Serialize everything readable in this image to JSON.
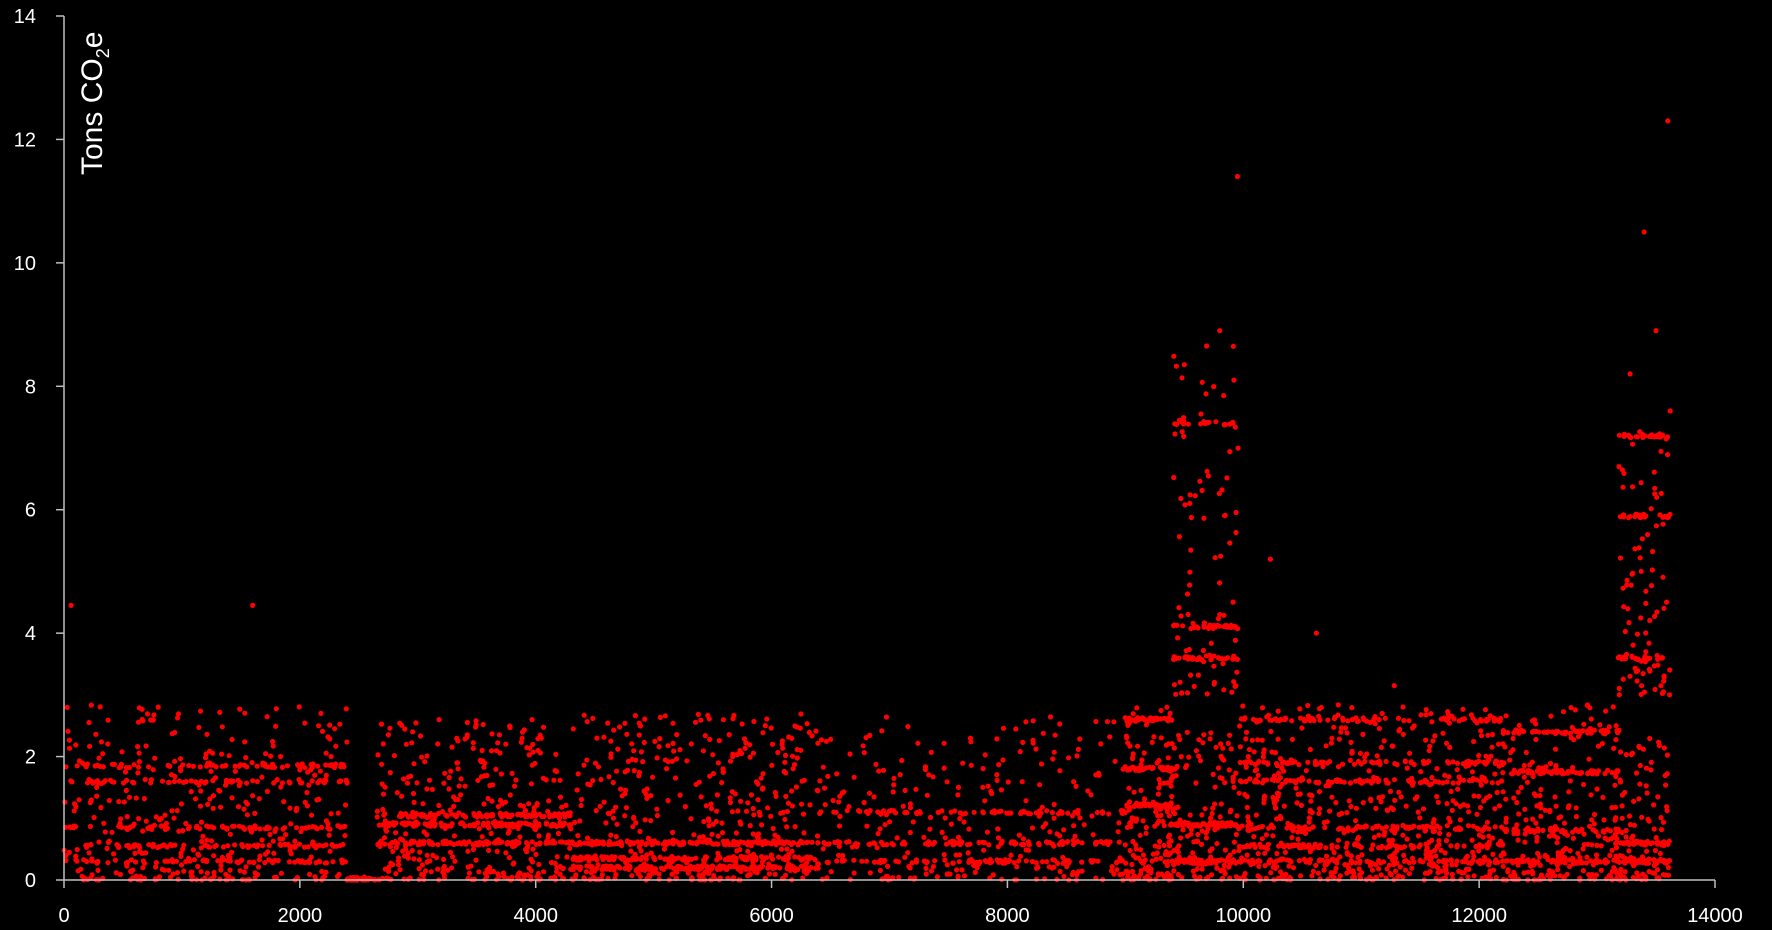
{
  "chart_data": {
    "type": "scatter",
    "title": "",
    "xlabel": "",
    "ylabel": {
      "prefix": "Tons CO",
      "subscript": "2",
      "suffix": "e"
    },
    "xlim": [
      0,
      14000
    ],
    "ylim": [
      0,
      14
    ],
    "x_ticks": [
      0,
      2000,
      4000,
      6000,
      8000,
      10000,
      12000,
      14000
    ],
    "y_ticks": [
      0,
      2,
      4,
      6,
      8,
      10,
      12,
      14
    ],
    "x_tick_labels": [
      "0",
      "2000",
      "4000",
      "6000",
      "8000",
      "10000",
      "12000",
      "14000"
    ],
    "y_tick_labels": [
      "0",
      "2",
      "4",
      "6",
      "8",
      "10",
      "12",
      "14"
    ],
    "grid": false,
    "legend": "none",
    "colors": {
      "background": "#000000",
      "axis": "#bfbfbf",
      "text": "#ffffff",
      "marker": "#ff0000"
    },
    "outliers": [
      {
        "x": 60,
        "y": 4.45
      },
      {
        "x": 1600,
        "y": 4.45
      },
      {
        "x": 9950,
        "y": 11.4
      },
      {
        "x": 13600,
        "y": 12.3
      },
      {
        "x": 13400,
        "y": 10.5
      },
      {
        "x": 13500,
        "y": 8.9
      },
      {
        "x": 9800,
        "y": 8.9
      },
      {
        "x": 9500,
        "y": 8.35
      },
      {
        "x": 9920,
        "y": 8.1
      },
      {
        "x": 13280,
        "y": 8.2
      },
      {
        "x": 13620,
        "y": 7.6
      },
      {
        "x": 10230,
        "y": 5.2
      },
      {
        "x": 10620,
        "y": 4.0
      },
      {
        "x": 11280,
        "y": 3.15
      }
    ],
    "clusters": [
      {
        "x_range": [
          0,
          2400
        ],
        "y_max": 2.85,
        "n": 700,
        "bands": [
          0.3,
          0.55,
          0.85,
          1.6,
          1.85
        ]
      },
      {
        "x_range": [
          2400,
          2650
        ],
        "y_max": 0.05,
        "n": 40,
        "bands": [
          0.0
        ]
      },
      {
        "x_range": [
          2650,
          4300
        ],
        "y_max": 2.6,
        "n": 650,
        "bands": [
          0.6,
          0.9,
          1.05
        ]
      },
      {
        "x_range": [
          4300,
          6400
        ],
        "y_max": 2.7,
        "n": 800,
        "bands": [
          0.2,
          0.35,
          0.6
        ]
      },
      {
        "x_range": [
          6400,
          9000
        ],
        "y_max": 2.65,
        "n": 500,
        "bands": [
          0.3,
          0.6,
          1.1
        ]
      },
      {
        "x_range": [
          9000,
          9400
        ],
        "y_max": 2.85,
        "n": 260,
        "bands": [
          1.2,
          1.8,
          2.6
        ]
      },
      {
        "x_range": [
          9380,
          9950
        ],
        "y_max": 2.5,
        "n": 250,
        "bands": [
          0.3,
          0.9
        ]
      },
      {
        "x_range": [
          9400,
          9960
        ],
        "y_min": 3.0,
        "y_max": 8.9,
        "n": 170,
        "bands": [
          3.6,
          4.1,
          7.4
        ]
      },
      {
        "x_range": [
          9960,
          12200
        ],
        "y_max": 2.85,
        "n": 1000,
        "bands": [
          0.3,
          0.55,
          0.85,
          1.6,
          1.9,
          2.6
        ]
      },
      {
        "x_range": [
          12200,
          13200
        ],
        "y_max": 2.85,
        "n": 450,
        "bands": [
          0.3,
          0.8,
          1.75,
          2.4
        ]
      },
      {
        "x_range": [
          13150,
          13620
        ],
        "y_max": 2.3,
        "n": 200,
        "bands": [
          0.3,
          0.6
        ]
      },
      {
        "x_range": [
          13180,
          13620
        ],
        "y_min": 3.0,
        "y_max": 7.3,
        "n": 160,
        "bands": [
          3.6,
          5.9,
          7.2
        ]
      }
    ]
  }
}
